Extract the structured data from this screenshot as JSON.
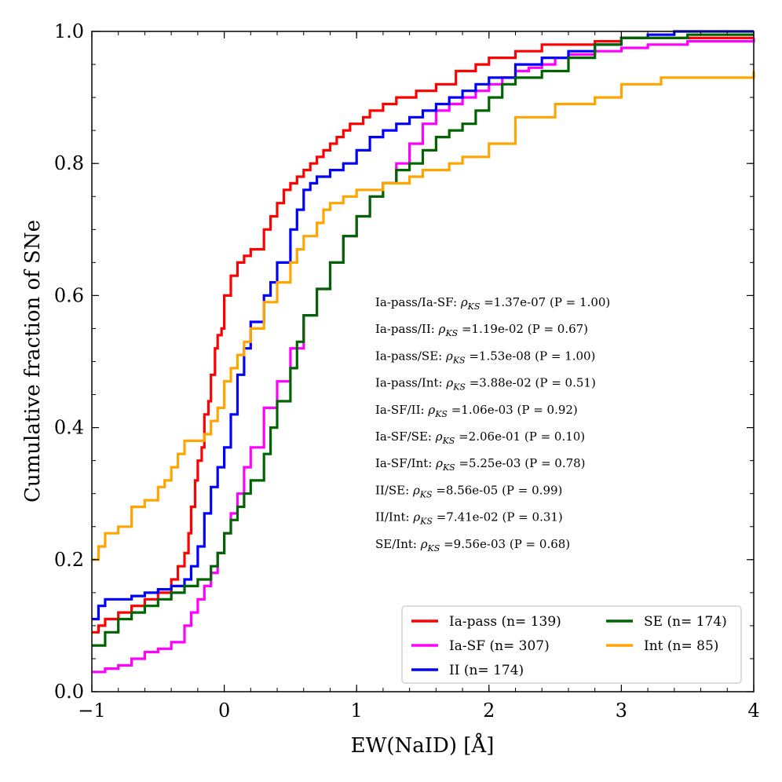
{
  "chart_data": {
    "type": "line",
    "title": "",
    "xlabel": "EW(NaID) [Å]",
    "ylabel": "Cumulative fraction of SNe",
    "xlim": [
      -1,
      4
    ],
    "ylim": [
      0,
      1
    ],
    "xticks": [
      -1,
      0,
      1,
      2,
      3,
      4
    ],
    "xtick_labels": [
      "−1",
      "0",
      "1",
      "2",
      "3",
      "4"
    ],
    "yticks": [
      0,
      0.2,
      0.4,
      0.6,
      0.8,
      1.0
    ],
    "ytick_labels": [
      "0.0",
      "0.2",
      "0.4",
      "0.6",
      "0.8",
      "1.0"
    ],
    "grid": false,
    "legend_position": "bottom-right",
    "series": [
      {
        "name": "Ia-pass",
        "legend_label": "Ia-pass (n= 139)",
        "color": "#ff0000",
        "x": [
          -1.0,
          -0.95,
          -0.9,
          -0.8,
          -0.7,
          -0.6,
          -0.5,
          -0.4,
          -0.35,
          -0.3,
          -0.27,
          -0.25,
          -0.22,
          -0.2,
          -0.17,
          -0.15,
          -0.12,
          -0.1,
          -0.07,
          -0.05,
          -0.02,
          0.0,
          0.05,
          0.1,
          0.15,
          0.2,
          0.3,
          0.35,
          0.4,
          0.45,
          0.5,
          0.55,
          0.6,
          0.65,
          0.7,
          0.75,
          0.8,
          0.85,
          0.9,
          0.95,
          1.0,
          1.05,
          1.1,
          1.2,
          1.3,
          1.45,
          1.6,
          1.75,
          1.9,
          2.0,
          2.2,
          2.4,
          2.6,
          2.8,
          3.0,
          3.2,
          3.5,
          4.0
        ],
        "y": [
          0.09,
          0.1,
          0.11,
          0.12,
          0.13,
          0.14,
          0.15,
          0.17,
          0.19,
          0.21,
          0.24,
          0.28,
          0.32,
          0.35,
          0.37,
          0.42,
          0.44,
          0.48,
          0.52,
          0.54,
          0.55,
          0.6,
          0.63,
          0.65,
          0.66,
          0.67,
          0.7,
          0.72,
          0.74,
          0.76,
          0.77,
          0.78,
          0.79,
          0.8,
          0.81,
          0.82,
          0.83,
          0.84,
          0.85,
          0.86,
          0.86,
          0.87,
          0.88,
          0.89,
          0.9,
          0.91,
          0.92,
          0.94,
          0.95,
          0.96,
          0.97,
          0.98,
          0.98,
          0.985,
          0.99,
          0.99,
          0.99,
          0.99
        ]
      },
      {
        "name": "Ia-SF",
        "legend_label": "Ia-SF (n= 307)",
        "color": "#ff00ff",
        "x": [
          -1.0,
          -0.9,
          -0.8,
          -0.7,
          -0.6,
          -0.5,
          -0.4,
          -0.3,
          -0.25,
          -0.2,
          -0.15,
          -0.1,
          -0.05,
          0.0,
          0.05,
          0.1,
          0.15,
          0.2,
          0.3,
          0.4,
          0.5,
          0.6,
          0.7,
          0.8,
          0.9,
          1.0,
          1.1,
          1.2,
          1.3,
          1.4,
          1.5,
          1.6,
          1.7,
          1.8,
          1.9,
          2.0,
          2.1,
          2.2,
          2.3,
          2.4,
          2.5,
          2.6,
          2.8,
          3.0,
          3.2,
          3.5,
          4.0
        ],
        "y": [
          0.03,
          0.035,
          0.04,
          0.05,
          0.06,
          0.065,
          0.075,
          0.1,
          0.12,
          0.14,
          0.16,
          0.18,
          0.21,
          0.24,
          0.27,
          0.3,
          0.34,
          0.37,
          0.43,
          0.47,
          0.52,
          0.57,
          0.61,
          0.65,
          0.69,
          0.72,
          0.75,
          0.77,
          0.8,
          0.83,
          0.86,
          0.88,
          0.89,
          0.9,
          0.91,
          0.92,
          0.93,
          0.94,
          0.945,
          0.95,
          0.96,
          0.965,
          0.97,
          0.975,
          0.98,
          0.985,
          0.99
        ]
      },
      {
        "name": "II",
        "legend_label": "II (n= 174)",
        "color": "#0000ff",
        "x": [
          -1.0,
          -0.95,
          -0.9,
          -0.8,
          -0.7,
          -0.6,
          -0.5,
          -0.4,
          -0.3,
          -0.25,
          -0.2,
          -0.15,
          -0.1,
          -0.05,
          0.0,
          0.05,
          0.1,
          0.15,
          0.2,
          0.3,
          0.35,
          0.4,
          0.5,
          0.55,
          0.6,
          0.65,
          0.7,
          0.8,
          0.9,
          1.0,
          1.1,
          1.2,
          1.3,
          1.4,
          1.5,
          1.6,
          1.7,
          1.8,
          1.9,
          2.0,
          2.2,
          2.4,
          2.6,
          2.8,
          3.0,
          3.2,
          3.4,
          4.0
        ],
        "y": [
          0.11,
          0.13,
          0.14,
          0.14,
          0.145,
          0.15,
          0.155,
          0.16,
          0.17,
          0.19,
          0.22,
          0.27,
          0.31,
          0.34,
          0.37,
          0.42,
          0.48,
          0.52,
          0.56,
          0.6,
          0.62,
          0.65,
          0.7,
          0.73,
          0.76,
          0.77,
          0.78,
          0.79,
          0.8,
          0.82,
          0.84,
          0.85,
          0.86,
          0.87,
          0.88,
          0.89,
          0.9,
          0.91,
          0.92,
          0.93,
          0.95,
          0.96,
          0.97,
          0.98,
          0.99,
          0.995,
          1.0,
          1.0
        ]
      },
      {
        "name": "SE",
        "legend_label": "SE (n= 174)",
        "color": "#006400",
        "x": [
          -1.0,
          -0.9,
          -0.8,
          -0.7,
          -0.6,
          -0.5,
          -0.4,
          -0.3,
          -0.2,
          -0.1,
          -0.05,
          0.0,
          0.05,
          0.1,
          0.15,
          0.2,
          0.3,
          0.35,
          0.4,
          0.5,
          0.55,
          0.6,
          0.7,
          0.8,
          0.9,
          1.0,
          1.1,
          1.2,
          1.3,
          1.4,
          1.5,
          1.6,
          1.7,
          1.8,
          1.9,
          2.0,
          2.1,
          2.2,
          2.4,
          2.6,
          2.8,
          3.0,
          3.2,
          3.5,
          4.0
        ],
        "y": [
          0.07,
          0.09,
          0.11,
          0.12,
          0.13,
          0.14,
          0.15,
          0.16,
          0.17,
          0.19,
          0.21,
          0.24,
          0.26,
          0.28,
          0.3,
          0.32,
          0.36,
          0.4,
          0.44,
          0.49,
          0.53,
          0.57,
          0.61,
          0.65,
          0.69,
          0.72,
          0.75,
          0.77,
          0.79,
          0.8,
          0.82,
          0.84,
          0.85,
          0.86,
          0.88,
          0.9,
          0.92,
          0.93,
          0.94,
          0.96,
          0.98,
          0.99,
          0.99,
          0.995,
          0.995
        ]
      },
      {
        "name": "Int",
        "legend_label": "Int (n= 85)",
        "color": "#ffa500",
        "x": [
          -1.0,
          -0.95,
          -0.9,
          -0.8,
          -0.7,
          -0.6,
          -0.5,
          -0.45,
          -0.4,
          -0.35,
          -0.3,
          -0.15,
          -0.1,
          -0.05,
          0.0,
          0.05,
          0.1,
          0.15,
          0.2,
          0.3,
          0.4,
          0.5,
          0.55,
          0.6,
          0.7,
          0.75,
          0.8,
          0.9,
          1.0,
          1.2,
          1.4,
          1.5,
          1.7,
          1.8,
          2.0,
          2.2,
          2.5,
          2.8,
          3.0,
          3.3,
          4.0
        ],
        "y": [
          0.2,
          0.22,
          0.24,
          0.25,
          0.28,
          0.29,
          0.31,
          0.32,
          0.34,
          0.36,
          0.38,
          0.39,
          0.41,
          0.43,
          0.47,
          0.49,
          0.51,
          0.53,
          0.55,
          0.59,
          0.62,
          0.65,
          0.67,
          0.69,
          0.71,
          0.73,
          0.74,
          0.75,
          0.76,
          0.77,
          0.78,
          0.79,
          0.8,
          0.81,
          0.83,
          0.87,
          0.89,
          0.9,
          0.92,
          0.93,
          0.94
        ]
      }
    ],
    "annotations": [
      "Ia-pass/Ia-SF: ρ_KS =1.37e-07 (P = 1.00)",
      "Ia-pass/II: ρ_KS =1.19e-02 (P = 0.67)",
      "Ia-pass/SE: ρ_KS =1.53e-08 (P = 1.00)",
      "Ia-pass/Int: ρ_KS =3.88e-02 (P = 0.51)",
      "Ia-SF/II: ρ_KS =1.06e-03 (P = 0.92)",
      "Ia-SF/SE: ρ_KS =2.06e-01 (P = 0.10)",
      "Ia-SF/Int: ρ_KS =5.25e-03 (P = 0.78)",
      "II/SE: ρ_KS =8.56e-05 (P = 0.99)",
      "II/Int: ρ_KS =7.41e-02 (P = 0.31)",
      "SE/Int: ρ_KS =9.56e-03 (P = 0.68)"
    ],
    "legend_order": [
      "Ia-pass",
      "SE",
      "Ia-SF",
      "Int",
      "II"
    ]
  }
}
